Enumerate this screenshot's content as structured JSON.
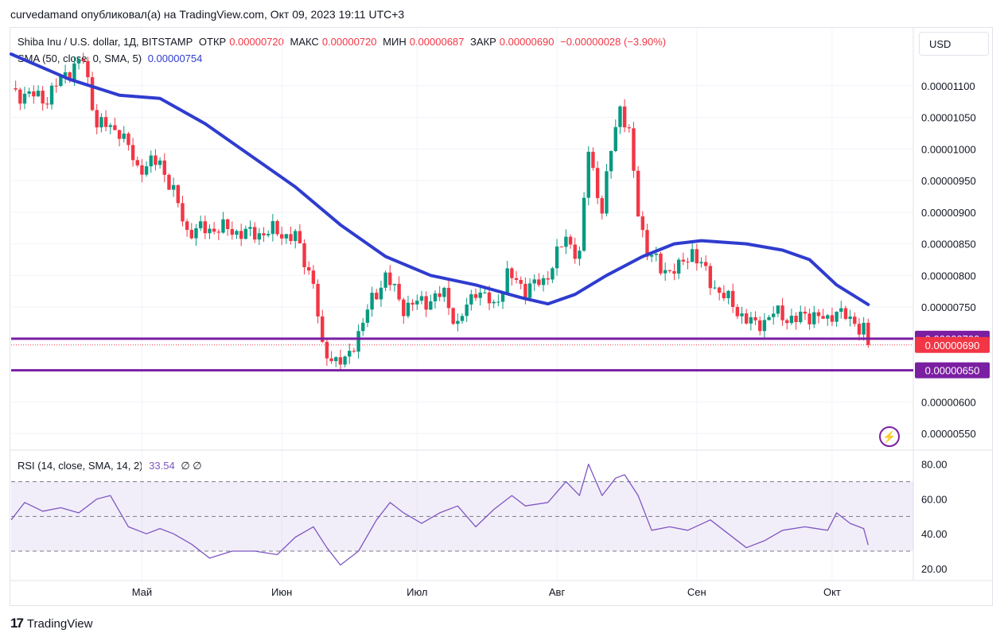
{
  "header": {
    "publish_line": "curvedamand опубликовал(а) на TradingView.com, Окт 09, 2023 19:11 UTC+3"
  },
  "legend": {
    "symbol": "Shiba Inu / U.S. dollar, 1Д, BITSTAMP",
    "open_label": "ОТКР",
    "open_value": "0.00000720",
    "high_label": "МАКС",
    "high_value": "0.00000720",
    "low_label": "МИН",
    "low_value": "0.00000687",
    "close_label": "ЗАКР",
    "close_value": "0.00000690",
    "change": "−0.00000028 (−3.90%)",
    "sma_label": "SMA (50, close, 0, SMA, 5)",
    "sma_value": "0.00000754",
    "rsi_label": "RSI (14, close, SMA, 14, 2)",
    "rsi_value": "33.54",
    "rsi_extra": "∅ ∅"
  },
  "currency_button": "USD",
  "footer": {
    "logo": "17",
    "brand": "TradingView"
  },
  "colors": {
    "up": "#089981",
    "down": "#f23645",
    "sma": "#2f3ccf",
    "level": "#7b1fa2",
    "rsi": "#7e57c2"
  },
  "chart_data": [
    {
      "type": "candlestick",
      "y_ticks": [
        1.1e-05,
        1.05e-05,
        1e-05,
        9.5e-06,
        9e-06,
        8.5e-06,
        8e-06,
        7.5e-06,
        6e-06,
        5.5e-06
      ],
      "y_tick_labels": [
        "0.00001100",
        "0.00001050",
        "0.00001000",
        "0.00000950",
        "0.00000900",
        "0.00000850",
        "0.00000800",
        "0.00000750",
        "0.00000600",
        "0.00000550"
      ],
      "x_labels": [
        "Май",
        "Июн",
        "Июл",
        "Авг",
        "Сен",
        "Окт"
      ],
      "x_label_dates": [
        "2023-05-01",
        "2023-06-01",
        "2023-07-01",
        "2023-08-01",
        "2023-09-01",
        "2023-10-01"
      ],
      "x_start": "2023-04-02",
      "x_end": "2023-10-19",
      "y_range": [
        5.25e-06,
        1.145e-05
      ],
      "levels": [
        {
          "price": 7e-06,
          "label": "0.00000700"
        },
        {
          "price": 6.5e-06,
          "label": "0.00000650"
        }
      ],
      "last_price": {
        "price": 6.9e-06,
        "label": "0.00000690"
      },
      "anchors": [
        [
          "2023-04-02",
          1.09e-05
        ],
        [
          "2023-04-10",
          1.08e-05
        ],
        [
          "2023-04-14",
          1.12e-05
        ],
        [
          "2023-04-18",
          1.14e-05
        ],
        [
          "2023-04-21",
          1.04e-05
        ],
        [
          "2023-04-26",
          1.03e-05
        ],
        [
          "2023-04-30",
          9.7e-06
        ],
        [
          "2023-05-05",
          9.8e-06
        ],
        [
          "2023-05-08",
          9.3e-06
        ],
        [
          "2023-05-11",
          8.7e-06
        ],
        [
          "2023-05-18",
          8.75e-06
        ],
        [
          "2023-05-25",
          8.65e-06
        ],
        [
          "2023-05-30",
          8.7e-06
        ],
        [
          "2023-06-04",
          8.6e-06
        ],
        [
          "2023-06-08",
          7.9e-06
        ],
        [
          "2023-06-10",
          6.8e-06
        ],
        [
          "2023-06-15",
          6.6e-06
        ],
        [
          "2023-06-18",
          7.1e-06
        ],
        [
          "2023-06-21",
          7.6e-06
        ],
        [
          "2023-06-24",
          8e-06
        ],
        [
          "2023-06-28",
          7.5e-06
        ],
        [
          "2023-07-03",
          7.6e-06
        ],
        [
          "2023-07-07",
          7.7e-06
        ],
        [
          "2023-07-10",
          7.2e-06
        ],
        [
          "2023-07-14",
          7.8e-06
        ],
        [
          "2023-07-18",
          7.5e-06
        ],
        [
          "2023-07-21",
          8e-06
        ],
        [
          "2023-07-25",
          7.8e-06
        ],
        [
          "2023-07-29",
          7.9e-06
        ],
        [
          "2023-08-03",
          8.6e-06
        ],
        [
          "2023-08-06",
          8.3e-06
        ],
        [
          "2023-08-08",
          1e-05
        ],
        [
          "2023-08-11",
          9e-06
        ],
        [
          "2023-08-13",
          1e-05
        ],
        [
          "2023-08-15",
          1.07e-05
        ],
        [
          "2023-08-17",
          1.02e-05
        ],
        [
          "2023-08-19",
          9e-06
        ],
        [
          "2023-08-21",
          8.4e-06
        ],
        [
          "2023-08-24",
          8.1e-06
        ],
        [
          "2023-08-28",
          8.1e-06
        ],
        [
          "2023-08-31",
          8.4e-06
        ],
        [
          "2023-09-04",
          7.9e-06
        ],
        [
          "2023-09-08",
          7.6e-06
        ],
        [
          "2023-09-12",
          7.3e-06
        ],
        [
          "2023-09-14",
          7.2e-06
        ],
        [
          "2023-09-18",
          7.4e-06
        ],
        [
          "2023-09-23",
          7.3e-06
        ],
        [
          "2023-09-27",
          7.4e-06
        ],
        [
          "2023-09-30",
          7.25e-06
        ],
        [
          "2023-10-02",
          7.5e-06
        ],
        [
          "2023-10-05",
          7.25e-06
        ],
        [
          "2023-10-08",
          7.2e-06
        ],
        [
          "2023-10-09",
          6.9e-06
        ]
      ],
      "sma_series": [
        [
          "2023-04-02",
          1.15e-05
        ],
        [
          "2023-04-15",
          1.11e-05
        ],
        [
          "2023-04-26",
          1.085e-05
        ],
        [
          "2023-05-05",
          1.08e-05
        ],
        [
          "2023-05-15",
          1.04e-05
        ],
        [
          "2023-05-25",
          9.9e-06
        ],
        [
          "2023-06-04",
          9.4e-06
        ],
        [
          "2023-06-14",
          8.8e-06
        ],
        [
          "2023-06-24",
          8.3e-06
        ],
        [
          "2023-07-04",
          8e-06
        ],
        [
          "2023-07-14",
          7.85e-06
        ],
        [
          "2023-07-24",
          7.65e-06
        ],
        [
          "2023-07-30",
          7.55e-06
        ],
        [
          "2023-08-05",
          7.7e-06
        ],
        [
          "2023-08-12",
          8e-06
        ],
        [
          "2023-08-20",
          8.3e-06
        ],
        [
          "2023-08-27",
          8.5e-06
        ],
        [
          "2023-09-02",
          8.55e-06
        ],
        [
          "2023-09-12",
          8.5e-06
        ],
        [
          "2023-09-20",
          8.4e-06
        ],
        [
          "2023-09-26",
          8.25e-06
        ],
        [
          "2023-10-02",
          7.85e-06
        ],
        [
          "2023-10-09",
          7.54e-06
        ]
      ]
    },
    {
      "type": "line",
      "name": "RSI",
      "y_ticks": [
        80,
        60,
        40,
        20
      ],
      "y_tick_labels": [
        "80.00",
        "60.00",
        "40.00",
        "20.00"
      ],
      "y_range": [
        14,
        84
      ],
      "band": [
        30,
        70
      ],
      "midline": 50,
      "points": [
        [
          "2023-04-02",
          48
        ],
        [
          "2023-04-05",
          58
        ],
        [
          "2023-04-09",
          53
        ],
        [
          "2023-04-13",
          55
        ],
        [
          "2023-04-17",
          52
        ],
        [
          "2023-04-21",
          60
        ],
        [
          "2023-04-24",
          62
        ],
        [
          "2023-04-28",
          44
        ],
        [
          "2023-05-02",
          40
        ],
        [
          "2023-05-05",
          43
        ],
        [
          "2023-05-08",
          40
        ],
        [
          "2023-05-12",
          34
        ],
        [
          "2023-05-16",
          26
        ],
        [
          "2023-05-21",
          30
        ],
        [
          "2023-05-26",
          30
        ],
        [
          "2023-05-31",
          28
        ],
        [
          "2023-06-04",
          38
        ],
        [
          "2023-06-08",
          44
        ],
        [
          "2023-06-11",
          32
        ],
        [
          "2023-06-14",
          22
        ],
        [
          "2023-06-18",
          30
        ],
        [
          "2023-06-22",
          48
        ],
        [
          "2023-06-25",
          58
        ],
        [
          "2023-06-28",
          52
        ],
        [
          "2023-07-02",
          46
        ],
        [
          "2023-07-06",
          52
        ],
        [
          "2023-07-10",
          56
        ],
        [
          "2023-07-14",
          44
        ],
        [
          "2023-07-18",
          54
        ],
        [
          "2023-07-22",
          62
        ],
        [
          "2023-07-25",
          56
        ],
        [
          "2023-07-30",
          58
        ],
        [
          "2023-08-03",
          70
        ],
        [
          "2023-08-06",
          62
        ],
        [
          "2023-08-08",
          80
        ],
        [
          "2023-08-11",
          62
        ],
        [
          "2023-08-14",
          72
        ],
        [
          "2023-08-16",
          74
        ],
        [
          "2023-08-19",
          62
        ],
        [
          "2023-08-22",
          42
        ],
        [
          "2023-08-26",
          44
        ],
        [
          "2023-08-30",
          42
        ],
        [
          "2023-09-04",
          48
        ],
        [
          "2023-09-08",
          40
        ],
        [
          "2023-09-12",
          32
        ],
        [
          "2023-09-16",
          36
        ],
        [
          "2023-09-20",
          42
        ],
        [
          "2023-09-25",
          44
        ],
        [
          "2023-09-30",
          42
        ],
        [
          "2023-10-02",
          52
        ],
        [
          "2023-10-05",
          46
        ],
        [
          "2023-10-08",
          43
        ],
        [
          "2023-10-09",
          33.54
        ]
      ]
    }
  ]
}
